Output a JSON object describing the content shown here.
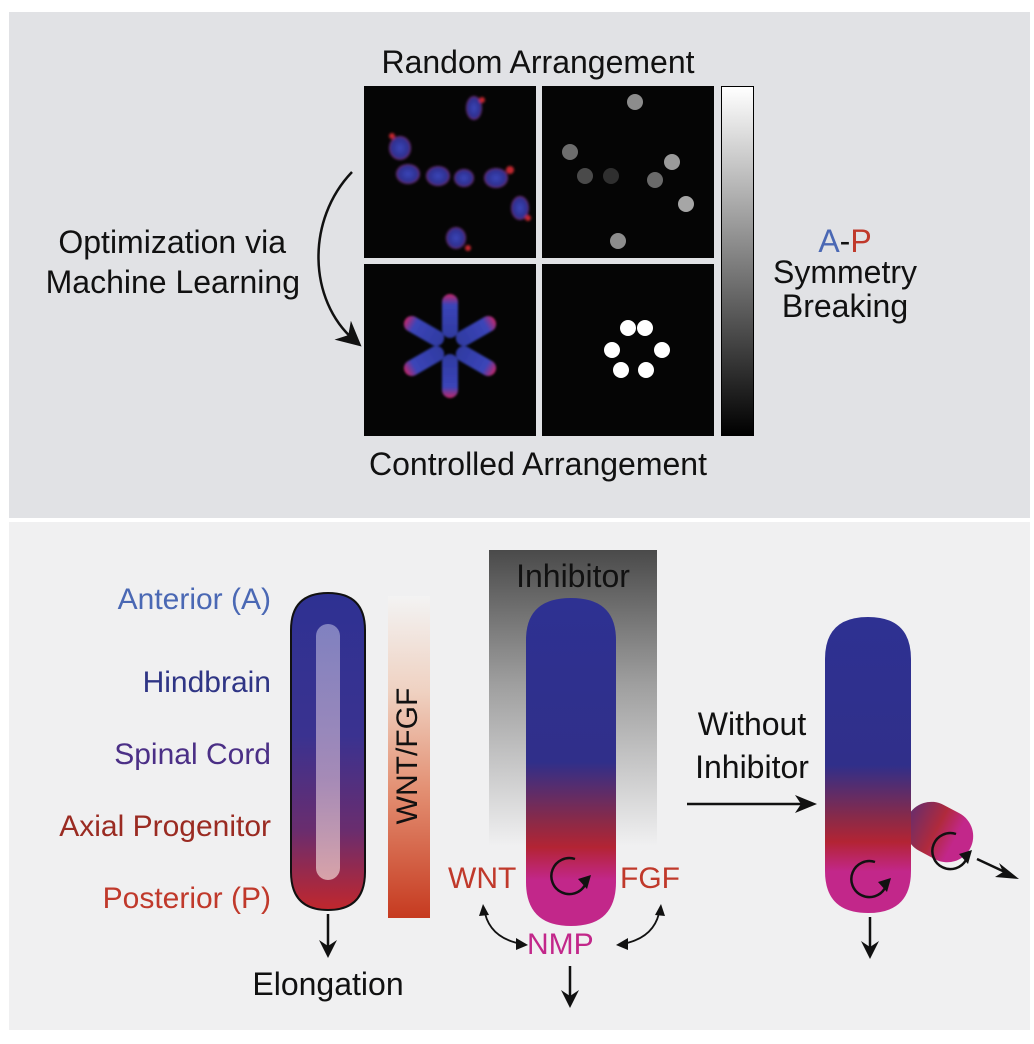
{
  "top_panel": {
    "title_top": "Random Arrangement",
    "title_bottom": "Controlled Arrangement",
    "arrow_label_line1": "Optimization via",
    "arrow_label_line2": "Machine Learning",
    "symmetry_a": "A",
    "symmetry_dash": "-",
    "symmetry_p": "P",
    "symmetry_line2": "Symmetry",
    "symmetry_line3": "Breaking"
  },
  "bottom_panel": {
    "labels": {
      "anterior": "Anterior (A)",
      "hindbrain": "Hindbrain",
      "spinal_cord": "Spinal Cord",
      "axial_progenitor": "Axial Progenitor",
      "posterior": "Posterior (P)"
    },
    "gradient_label": "WNT/FGF",
    "elongation": "Elongation",
    "inhibitor": "Inhibitor",
    "wnt": "WNT",
    "fgf": "FGF",
    "nmp": "NMP",
    "without_line1": "Without",
    "without_line2": "Inhibitor"
  },
  "colors": {
    "anterior_blue": "#4a68b4",
    "hindbrain_navy": "#2f3585",
    "spinal_purple": "#4b2f86",
    "axial_red": "#9a2b22",
    "posterior_red": "#c0392b",
    "nmp_magenta": "#c2278a",
    "organoid_blue": "#2e3192",
    "organoid_red": "#c1272d"
  }
}
